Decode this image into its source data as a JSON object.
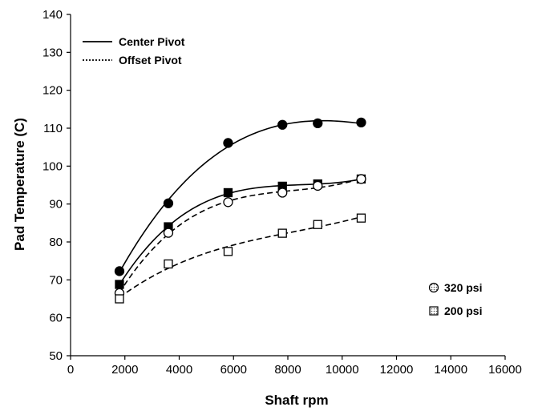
{
  "chart_data": {
    "type": "scatter",
    "title": "",
    "xlabel": "Shaft rpm",
    "ylabel": "Pad Temperature (C)",
    "xlim": [
      0,
      16000
    ],
    "ylim": [
      50,
      140
    ],
    "x_ticks": [
      0,
      2000,
      4000,
      6000,
      8000,
      10000,
      12000,
      14000,
      16000
    ],
    "y_ticks": [
      50,
      60,
      70,
      80,
      90,
      100,
      110,
      120,
      130,
      140
    ],
    "grid": false,
    "line_legend": {
      "placement": "top-left",
      "entries": [
        {
          "label": "Center Pivot",
          "style": "solid"
        },
        {
          "label": "Offset Pivot",
          "style": "dotted"
        }
      ]
    },
    "marker_legend": {
      "placement": "bottom-right",
      "entries": [
        {
          "label": "320 psi",
          "marker": "circle"
        },
        {
          "label": "200 psi",
          "marker": "square"
        }
      ]
    },
    "series": [
      {
        "marker": "circle",
        "fill": "filled",
        "line": "solid",
        "x": [
          1800,
          3600,
          5800,
          7800,
          9100,
          10700
        ],
        "y": [
          72.3,
          90.2,
          106.1,
          110.9,
          111.3,
          111.5
        ]
      },
      {
        "marker": "square",
        "fill": "filled",
        "line": "solid",
        "x": [
          1800,
          3600,
          5800,
          7800,
          9100,
          10700
        ],
        "y": [
          68.8,
          84.0,
          93.0,
          94.7,
          95.3,
          96.6
        ]
      },
      {
        "marker": "circle",
        "fill": "open",
        "line": "dashed",
        "x": [
          1800,
          3600,
          5800,
          7800,
          9100,
          10700
        ],
        "y": [
          66.5,
          82.4,
          90.5,
          93.0,
          94.8,
          96.6
        ]
      },
      {
        "marker": "square",
        "fill": "open",
        "line": "dashed",
        "x": [
          1800,
          3600,
          5800,
          7800,
          9100,
          10700
        ],
        "y": [
          65.0,
          74.2,
          77.5,
          82.3,
          84.6,
          86.3
        ]
      }
    ]
  }
}
